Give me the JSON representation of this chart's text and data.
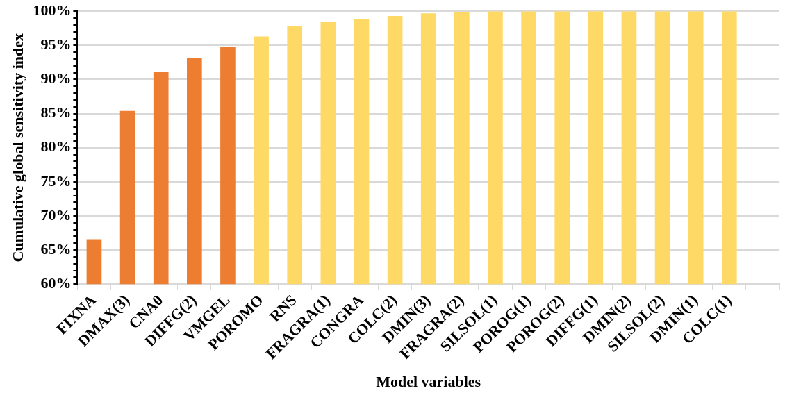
{
  "chart_data": {
    "type": "bar",
    "xlabel": "Model variables",
    "ylabel": "Cumulative global sensitivity index",
    "categories": [
      "FIXNA",
      "DMAX(3)",
      "CNA0",
      "DIFFG(2)",
      "VMGEL",
      "POROMO",
      "RNS",
      "FRAGRA(1)",
      "CONGRA",
      "COLC(2)",
      "DMIN(3)",
      "FRAGRA(2)",
      "SILSOL(1)",
      "POROG(1)",
      "POROG(2)",
      "DIFFG(1)",
      "DMIN(2)",
      "SILSOL(2)",
      "DMIN(1)",
      "COLC(1)",
      null
    ],
    "values": [
      66.6,
      85.4,
      91.1,
      93.2,
      94.8,
      96.3,
      97.8,
      98.5,
      98.9,
      99.3,
      99.7,
      99.9,
      100,
      100,
      100,
      100,
      100,
      100,
      100,
      100,
      null
    ],
    "colors": [
      "#ed7d31",
      "#ed7d31",
      "#ed7d31",
      "#ed7d31",
      "#ed7d31",
      "#ffd966",
      "#ffd966",
      "#ffd966",
      "#ffd966",
      "#ffd966",
      "#ffd966",
      "#ffd966",
      "#ffd966",
      "#ffd966",
      "#ffd966",
      "#ffd966",
      "#ffd966",
      "#ffd966",
      "#ffd966",
      "#ffd966",
      "#ffd966"
    ],
    "ylim": [
      60,
      100
    ],
    "yticks": [
      {
        "value": 60,
        "label": "60%"
      },
      {
        "value": 61,
        "label": null
      },
      {
        "value": 62,
        "label": null
      },
      {
        "value": 63,
        "label": null
      },
      {
        "value": 64,
        "label": null
      },
      {
        "value": 65,
        "label": "65%"
      },
      {
        "value": 66,
        "label": null
      },
      {
        "value": 67,
        "label": null
      },
      {
        "value": 68,
        "label": null
      },
      {
        "value": 69,
        "label": null
      },
      {
        "value": 70,
        "label": "70%"
      },
      {
        "value": 71,
        "label": null
      },
      {
        "value": 72,
        "label": null
      },
      {
        "value": 73,
        "label": null
      },
      {
        "value": 74,
        "label": null
      },
      {
        "value": 75,
        "label": "75%"
      },
      {
        "value": 76,
        "label": null
      },
      {
        "value": 77,
        "label": null
      },
      {
        "value": 78,
        "label": null
      },
      {
        "value": 79,
        "label": null
      },
      {
        "value": 80,
        "label": "80%"
      },
      {
        "value": 81,
        "label": null
      },
      {
        "value": 82,
        "label": null
      },
      {
        "value": 83,
        "label": null
      },
      {
        "value": 84,
        "label": null
      },
      {
        "value": 85,
        "label": "85%"
      },
      {
        "value": 86,
        "label": null
      },
      {
        "value": 87,
        "label": null
      },
      {
        "value": 88,
        "label": null
      },
      {
        "value": 89,
        "label": null
      },
      {
        "value": 90,
        "label": "90%"
      },
      {
        "value": 91,
        "label": null
      },
      {
        "value": 92,
        "label": null
      },
      {
        "value": 93,
        "label": null
      },
      {
        "value": 94,
        "label": null
      },
      {
        "value": 95,
        "label": "95%"
      },
      {
        "value": 96,
        "label": null
      },
      {
        "value": 97,
        "label": null
      },
      {
        "value": 98,
        "label": null
      },
      {
        "value": 99,
        "label": null
      },
      {
        "value": 100,
        "label": "100%"
      }
    ],
    "grid": "y"
  }
}
